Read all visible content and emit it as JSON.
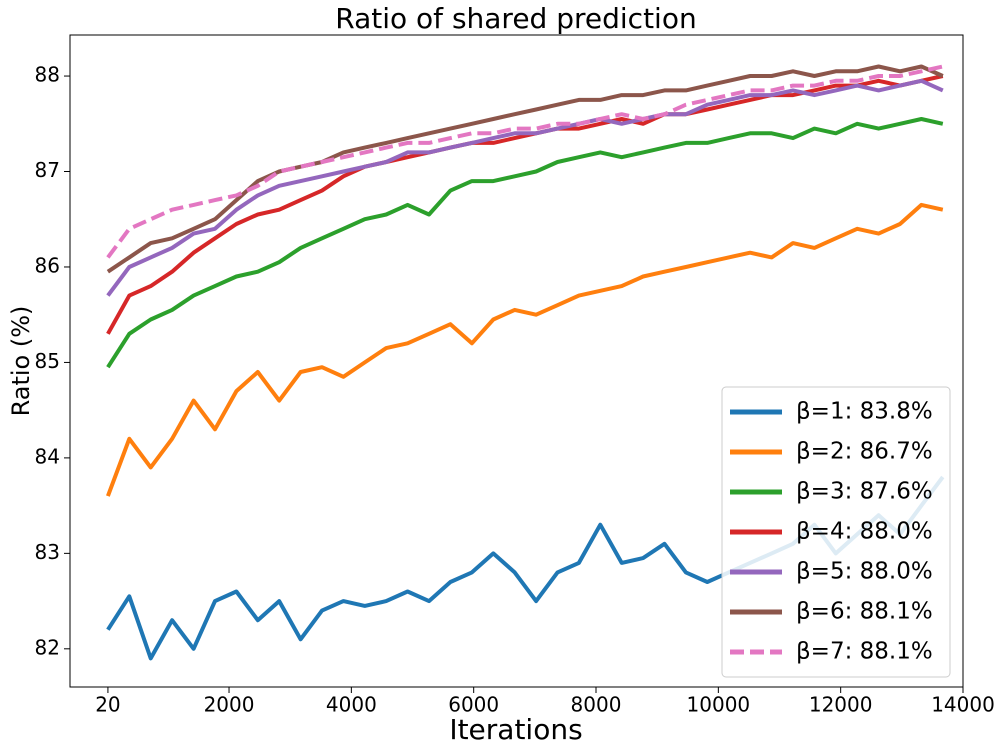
{
  "chart_data": {
    "type": "line",
    "title": "Ratio of shared prediction",
    "xlabel": "Iterations",
    "ylabel": "Ratio (%)",
    "x": [
      20,
      370,
      720,
      1070,
      1420,
      1770,
      2120,
      2470,
      2820,
      3170,
      3520,
      3870,
      4220,
      4570,
      4920,
      5270,
      5620,
      5970,
      6320,
      6670,
      7020,
      7370,
      7720,
      8070,
      8420,
      8770,
      9120,
      9470,
      9820,
      10170,
      10520,
      10870,
      11220,
      11570,
      11920,
      12270,
      12620,
      12970,
      13320,
      13670
    ],
    "xlim": [
      -600,
      14000
    ],
    "xticks": [
      20,
      2000,
      4000,
      6000,
      8000,
      10000,
      12000,
      14000
    ],
    "ylim": [
      81.6,
      88.43
    ],
    "yticks": [
      82,
      83,
      84,
      85,
      86,
      87,
      88
    ],
    "grid": false,
    "legend": "lower right",
    "series": [
      {
        "name": "β=1: 83.8%",
        "color": "#1f77b4",
        "linestyle": "solid",
        "values": [
          82.2,
          82.55,
          81.9,
          82.3,
          82.0,
          82.5,
          82.6,
          82.3,
          82.5,
          82.1,
          82.4,
          82.5,
          82.45,
          82.5,
          82.6,
          82.5,
          82.7,
          82.8,
          83.0,
          82.8,
          82.5,
          82.8,
          82.9,
          83.3,
          82.9,
          82.95,
          83.1,
          82.8,
          82.7,
          82.8,
          82.9,
          83.0,
          83.1,
          83.3,
          83.0,
          83.2,
          83.4,
          83.2,
          83.5,
          83.8
        ]
      },
      {
        "name": "β=2: 86.7%",
        "color": "#ff7f0e",
        "linestyle": "solid",
        "values": [
          83.6,
          84.2,
          83.9,
          84.2,
          84.6,
          84.3,
          84.7,
          84.9,
          84.6,
          84.9,
          84.95,
          84.85,
          85.0,
          85.15,
          85.2,
          85.3,
          85.4,
          85.2,
          85.45,
          85.55,
          85.5,
          85.6,
          85.7,
          85.75,
          85.8,
          85.9,
          85.95,
          86.0,
          86.05,
          86.1,
          86.15,
          86.1,
          86.25,
          86.2,
          86.3,
          86.4,
          86.35,
          86.45,
          86.65,
          86.6
        ]
      },
      {
        "name": "β=3: 87.6%",
        "color": "#2ca02c",
        "linestyle": "solid",
        "values": [
          84.95,
          85.3,
          85.45,
          85.55,
          85.7,
          85.8,
          85.9,
          85.95,
          86.05,
          86.2,
          86.3,
          86.4,
          86.5,
          86.55,
          86.65,
          86.55,
          86.8,
          86.9,
          86.9,
          86.95,
          87.0,
          87.1,
          87.15,
          87.2,
          87.15,
          87.2,
          87.25,
          87.3,
          87.3,
          87.35,
          87.4,
          87.4,
          87.35,
          87.45,
          87.4,
          87.5,
          87.45,
          87.5,
          87.55,
          87.5
        ]
      },
      {
        "name": "β=4: 88.0%",
        "color": "#d62728",
        "linestyle": "solid",
        "values": [
          85.3,
          85.7,
          85.8,
          85.95,
          86.15,
          86.3,
          86.45,
          86.55,
          86.6,
          86.7,
          86.8,
          86.95,
          87.05,
          87.1,
          87.15,
          87.2,
          87.25,
          87.3,
          87.3,
          87.35,
          87.4,
          87.45,
          87.45,
          87.5,
          87.55,
          87.5,
          87.6,
          87.6,
          87.65,
          87.7,
          87.75,
          87.8,
          87.8,
          87.85,
          87.9,
          87.9,
          87.95,
          87.9,
          87.95,
          88.0
        ]
      },
      {
        "name": "β=5: 88.0%",
        "color": "#9467bd",
        "linestyle": "solid",
        "values": [
          85.7,
          86.0,
          86.1,
          86.2,
          86.35,
          86.4,
          86.6,
          86.75,
          86.85,
          86.9,
          86.95,
          87.0,
          87.05,
          87.1,
          87.2,
          87.2,
          87.25,
          87.3,
          87.35,
          87.4,
          87.4,
          87.45,
          87.5,
          87.55,
          87.5,
          87.55,
          87.6,
          87.6,
          87.7,
          87.75,
          87.8,
          87.8,
          87.85,
          87.8,
          87.85,
          87.9,
          87.85,
          87.9,
          87.95,
          87.85
        ]
      },
      {
        "name": "β=6: 88.1%",
        "color": "#8c564b",
        "linestyle": "solid",
        "values": [
          85.95,
          86.1,
          86.25,
          86.3,
          86.4,
          86.5,
          86.7,
          86.9,
          87.0,
          87.05,
          87.1,
          87.2,
          87.25,
          87.3,
          87.35,
          87.4,
          87.45,
          87.5,
          87.55,
          87.6,
          87.65,
          87.7,
          87.75,
          87.75,
          87.8,
          87.8,
          87.85,
          87.85,
          87.9,
          87.95,
          88.0,
          88.0,
          88.05,
          88.0,
          88.05,
          88.05,
          88.1,
          88.05,
          88.1,
          88.0
        ]
      },
      {
        "name": "β=7: 88.1%",
        "color": "#e377c2",
        "linestyle": "dashed",
        "values": [
          86.1,
          86.4,
          86.5,
          86.6,
          86.65,
          86.7,
          86.75,
          86.85,
          87.0,
          87.05,
          87.1,
          87.15,
          87.2,
          87.25,
          87.3,
          87.3,
          87.35,
          87.4,
          87.4,
          87.45,
          87.45,
          87.5,
          87.5,
          87.55,
          87.6,
          87.55,
          87.6,
          87.7,
          87.75,
          87.8,
          87.85,
          87.85,
          87.9,
          87.9,
          87.95,
          87.95,
          88.0,
          88.0,
          88.05,
          88.1
        ]
      }
    ]
  }
}
